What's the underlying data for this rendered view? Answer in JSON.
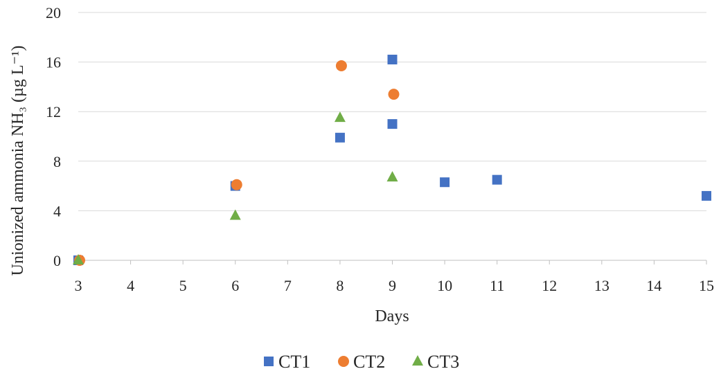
{
  "chart_data": {
    "type": "scatter",
    "title": "",
    "xlabel": "Days",
    "ylabel": "Unionized ammonia NH₃ (µg L⁻¹)",
    "x_categories": [
      "3",
      "4",
      "5",
      "6",
      "7",
      "8",
      "9",
      "10",
      "11",
      "12",
      "13",
      "14",
      "15"
    ],
    "y_ticks": [
      "0",
      "4",
      "8",
      "12",
      "16",
      "20"
    ],
    "ylim": [
      0,
      20
    ],
    "grid": true,
    "legend_position": "bottom",
    "series": [
      {
        "name": "CT1",
        "marker": "square",
        "color": "#4472C4",
        "points": [
          {
            "x": "3",
            "y": 0
          },
          {
            "x": "6",
            "y": 6.0
          },
          {
            "x": "8",
            "y": 9.9
          },
          {
            "x": "9",
            "y": 16.2
          },
          {
            "x": "9",
            "y": 11.0
          },
          {
            "x": "10",
            "y": 6.3
          },
          {
            "x": "11",
            "y": 6.5
          },
          {
            "x": "15",
            "y": 5.2
          }
        ]
      },
      {
        "name": "CT2",
        "marker": "circle",
        "color": "#ED7D31",
        "points": [
          {
            "x": "3",
            "y": 0
          },
          {
            "x": "6",
            "y": 6.1
          },
          {
            "x": "8",
            "y": 15.7
          },
          {
            "x": "9",
            "y": 13.4
          }
        ]
      },
      {
        "name": "CT3",
        "marker": "triangle",
        "color": "#70AD47",
        "points": [
          {
            "x": "3",
            "y": 0
          },
          {
            "x": "6",
            "y": 3.6
          },
          {
            "x": "8",
            "y": 11.5
          },
          {
            "x": "9",
            "y": 6.7
          }
        ]
      }
    ]
  }
}
